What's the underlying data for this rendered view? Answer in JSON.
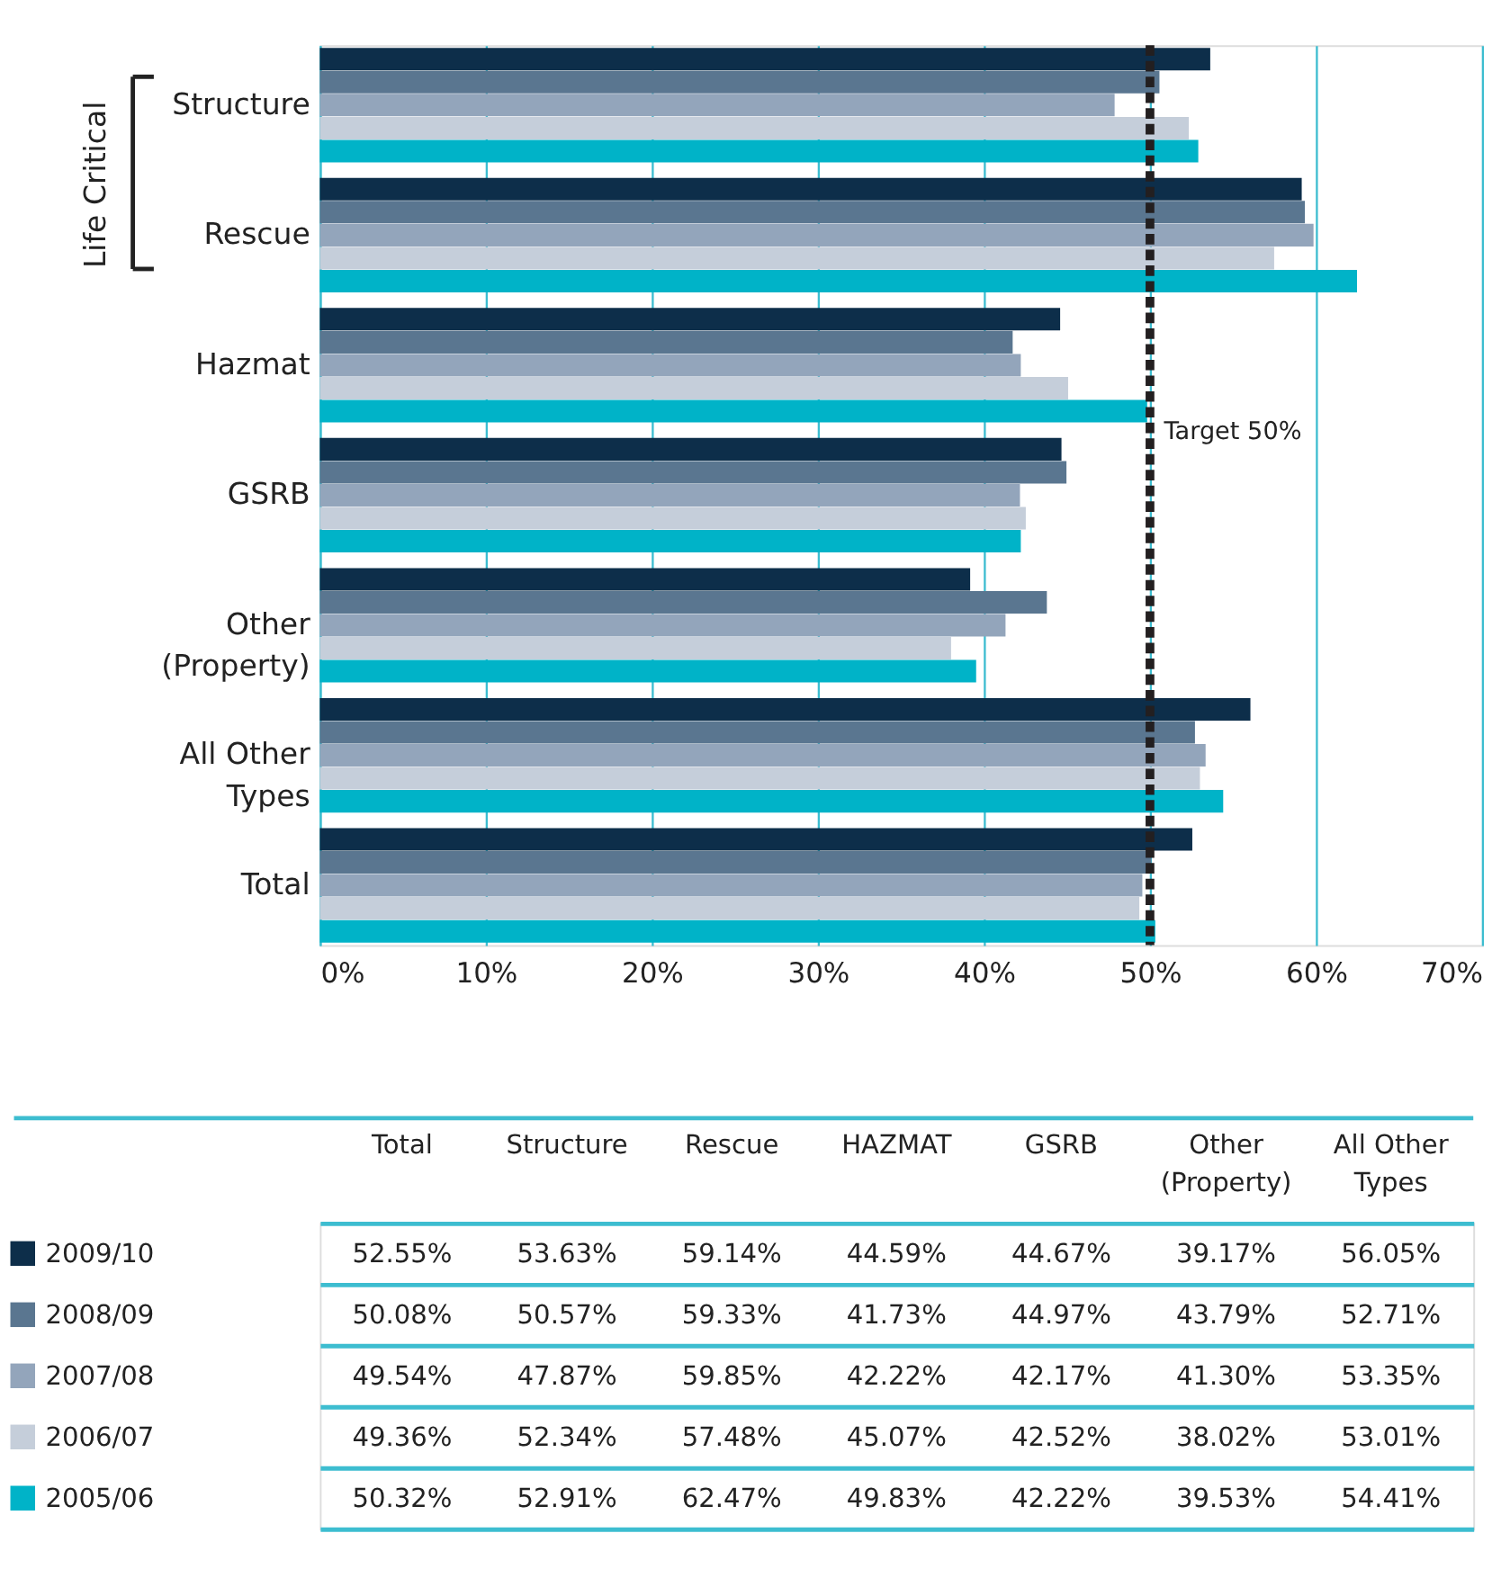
{
  "chart_data": [
    {
      "type": "bar",
      "orientation": "horizontal",
      "categories": [
        "Structure",
        "Rescue",
        "Hazmat",
        "GSRB",
        "Other (Property)",
        "All Other Types",
        "Total"
      ],
      "series": [
        {
          "color": "#0d2e4a",
          "values": [
            53.63,
            59.14,
            44.59,
            44.67,
            39.17,
            56.05,
            52.55
          ]
        },
        {
          "color": "#5a7690",
          "values": [
            50.57,
            59.33,
            41.73,
            44.97,
            43.79,
            52.71,
            50.08
          ]
        },
        {
          "color": "#93a5bb",
          "values": [
            47.87,
            59.85,
            42.22,
            42.17,
            41.3,
            53.35,
            49.54
          ]
        },
        {
          "color": "#c5ceda",
          "values": [
            52.34,
            57.48,
            45.07,
            42.52,
            38.02,
            53.01,
            49.36
          ]
        },
        {
          "color": "#00b3c8",
          "values": [
            52.91,
            62.47,
            49.83,
            42.22,
            39.53,
            54.41,
            50.32
          ]
        }
      ],
      "xlim": [
        0,
        70
      ],
      "xticks": [
        {
          "value": 0,
          "label": "0%"
        },
        {
          "value": 10,
          "label": "10%"
        },
        {
          "value": 20,
          "label": "20%"
        },
        {
          "value": 30,
          "label": "30%"
        },
        {
          "value": 40,
          "label": "40%"
        },
        {
          "value": 50,
          "label": "50%"
        },
        {
          "value": 60,
          "label": "60%"
        },
        {
          "value": 70,
          "label": "70%"
        }
      ],
      "grid": "x",
      "ref_lines": [
        {
          "axis": "x",
          "value": 50,
          "label": "Target 50%",
          "color": "#231f20",
          "line_style": "dashed"
        }
      ],
      "annotations": [
        "Life Critical"
      ]
    },
    {
      "type": "other",
      "categories": [
        "Total",
        "Structure",
        "Rescue",
        "HAZMAT",
        "GSRB",
        "Other (Property)",
        "All Other Types"
      ],
      "series": [
        {
          "name": "2009/10",
          "color": "#0d2e4a",
          "values": [
            52.55,
            53.63,
            59.14,
            44.59,
            44.67,
            39.17,
            56.05
          ],
          "value_labels": [
            "52.55%",
            "53.63%",
            "59.14%",
            "44.59%",
            "44.67%",
            "39.17%",
            "56.05%"
          ]
        },
        {
          "name": "2008/09",
          "color": "#5a7690",
          "values": [
            50.08,
            50.57,
            59.33,
            41.73,
            44.97,
            43.79,
            52.71
          ],
          "value_labels": [
            "50.08%",
            "50.57%",
            "59.33%",
            "41.73%",
            "44.97%",
            "43.79%",
            "52.71%"
          ]
        },
        {
          "name": "2007/08",
          "color": "#93a5bb",
          "values": [
            49.54,
            47.87,
            59.85,
            42.22,
            42.17,
            41.3,
            53.35
          ],
          "value_labels": [
            "49.54%",
            "47.87%",
            "59.85%",
            "42.22%",
            "42.17%",
            "41.30%",
            "53.35%"
          ]
        },
        {
          "name": "2006/07",
          "color": "#c5ceda",
          "values": [
            49.36,
            52.34,
            57.48,
            45.07,
            42.52,
            38.02,
            53.01
          ],
          "value_labels": [
            "49.36%",
            "52.34%",
            "57.48%",
            "45.07%",
            "42.52%",
            "38.02%",
            "53.01%"
          ]
        },
        {
          "name": "2005/06",
          "color": "#00b3c8",
          "values": [
            50.32,
            52.91,
            62.47,
            49.83,
            42.22,
            39.53,
            54.41
          ],
          "value_labels": [
            "50.32%",
            "52.91%",
            "62.47%",
            "49.83%",
            "42.22%",
            "39.53%",
            "54.41%"
          ]
        }
      ]
    }
  ]
}
